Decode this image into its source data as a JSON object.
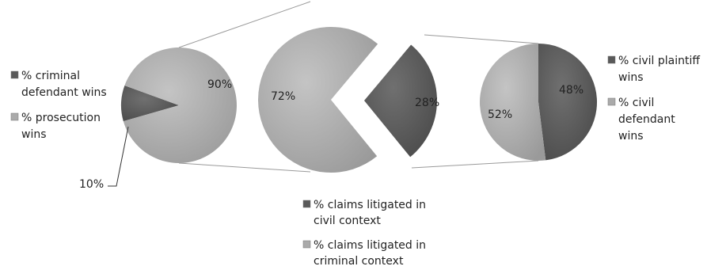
{
  "chart_data": [
    {
      "type": "pie",
      "categories": [
        "% criminal defendant wins",
        "% prosecution wins"
      ],
      "values": [
        10,
        90
      ],
      "data_labels": [
        "10%",
        "90%"
      ],
      "legend": "left",
      "colors": [
        "#595959",
        "#aaaaaa"
      ]
    },
    {
      "type": "pie",
      "categories": [
        "% claims litigated in civil context",
        "% claims litigated in criminal context"
      ],
      "values": [
        28,
        72
      ],
      "data_labels": [
        "28%",
        "72%"
      ],
      "legend": "bottom",
      "colors": [
        "#595959",
        "#aaaaaa"
      ]
    },
    {
      "type": "pie",
      "categories": [
        "% civil plaintiff wins",
        "% civil defendant wins"
      ],
      "values": [
        48,
        52
      ],
      "data_labels": [
        "48%",
        "52%"
      ],
      "legend": "right",
      "colors": [
        "#595959",
        "#aaaaaa"
      ]
    }
  ],
  "legends": {
    "left": [
      {
        "lines": [
          "% criminal",
          "defendant wins"
        ],
        "color": "#595959"
      },
      {
        "lines": [
          "% prosecution",
          "wins"
        ],
        "color": "#aaaaaa"
      }
    ],
    "middle": [
      {
        "lines": [
          "% claims litigated in",
          "civil context"
        ],
        "color": "#595959"
      },
      {
        "lines": [
          "% claims litigated in",
          "criminal context"
        ],
        "color": "#aaaaaa"
      }
    ],
    "right": [
      {
        "lines": [
          "% civil plaintiff",
          "wins"
        ],
        "color": "#595959"
      },
      {
        "lines": [
          "% civil",
          "defendant",
          "wins"
        ],
        "color": "#aaaaaa"
      }
    ]
  }
}
